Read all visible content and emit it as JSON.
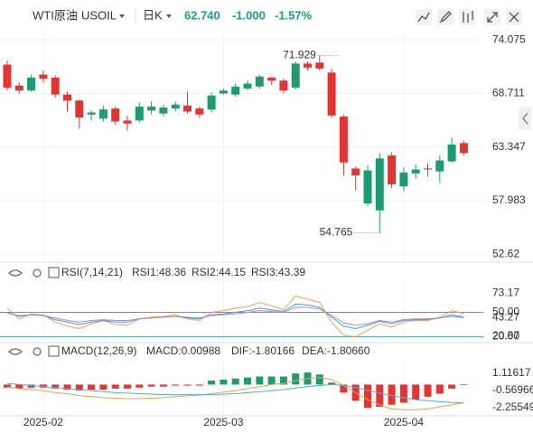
{
  "header": {
    "symbol": "WTI原油",
    "code": "USOIL",
    "period": "日K",
    "price": "62.740",
    "change": "-1.000",
    "change_pct": "-1.57%"
  },
  "chart_data": [
    {
      "type": "candlestick",
      "categories": [
        null,
        null,
        null,
        "2025-02",
        null,
        null,
        null,
        null,
        null,
        null,
        null,
        null,
        null,
        null,
        null,
        null,
        null,
        null,
        "2025-03",
        null,
        null,
        null,
        null,
        null,
        null,
        null,
        null,
        null,
        null,
        null,
        null,
        null,
        null,
        "2025-04",
        null,
        null,
        null,
        null,
        null
      ],
      "open": [
        71.6,
        69.5,
        69.0,
        70.6,
        70.3,
        68.6,
        68.0,
        66.6,
        66.2,
        67.2,
        66.0,
        66.0,
        67.0,
        66.7,
        67.2,
        67.5,
        67.2,
        67.1,
        68.7,
        68.6,
        69.2,
        69.4,
        70.3,
        70.0,
        69.3,
        71.7,
        71.8,
        70.8,
        66.4,
        61.2,
        57.7,
        57.0,
        62.5,
        59.4,
        60.7,
        61.2,
        60.9,
        61.9,
        63.74
      ],
      "high": [
        72.0,
        69.8,
        70.6,
        71.0,
        70.5,
        68.9,
        68.1,
        67.0,
        67.5,
        67.4,
        66.5,
        67.8,
        67.9,
        67.6,
        67.9,
        68.9,
        67.4,
        68.8,
        69.2,
        69.7,
        70.0,
        70.6,
        70.4,
        70.2,
        71.929,
        71.9,
        72.5,
        71.2,
        66.6,
        61.4,
        61.5,
        62.7,
        62.8,
        61.3,
        61.6,
        61.7,
        62.5,
        64.3,
        64.0
      ],
      "low": [
        69.0,
        68.7,
        68.9,
        69.8,
        68.3,
        66.9,
        65.2,
        66.0,
        65.9,
        65.6,
        65.0,
        65.8,
        66.6,
        66.4,
        66.9,
        66.7,
        66.3,
        66.8,
        68.6,
        68.4,
        69.0,
        69.2,
        69.6,
        68.7,
        69.1,
        71.0,
        71.0,
        66.3,
        60.5,
        59.0,
        57.4,
        54.765,
        59.2,
        58.9,
        60.2,
        60.4,
        59.8,
        61.8,
        62.5
      ],
      "close": [
        69.3,
        69.0,
        70.3,
        70.2,
        68.6,
        68.0,
        66.3,
        66.8,
        67.1,
        65.9,
        65.7,
        67.4,
        67.4,
        67.3,
        67.6,
        66.9,
        66.6,
        68.5,
        69.0,
        69.4,
        69.7,
        70.4,
        70.0,
        69.0,
        71.7,
        71.3,
        71.2,
        66.5,
        61.8,
        60.5,
        61.0,
        62.2,
        59.6,
        60.8,
        61.1,
        61.1,
        62.0,
        63.6,
        62.74
      ],
      "up_color": "#1c9c70",
      "down_color": "#e8322f",
      "ylim": [
        52.0,
        74.9
      ],
      "yticks": [
        74.075,
        68.711,
        63.347,
        57.983,
        52.62
      ],
      "high_label": "71.929",
      "low_label": "54.765"
    },
    {
      "type": "line",
      "title": "RSI(7,14,21)",
      "series": [
        {
          "name": "RSI1:48.36",
          "color": "#f3a03f",
          "values": [
            55,
            42,
            48,
            47,
            38,
            33,
            30,
            36,
            40,
            35,
            34,
            42,
            44,
            45,
            47,
            42,
            40,
            50,
            52,
            55,
            57,
            62,
            58,
            53,
            70,
            66,
            62,
            38,
            22,
            20,
            28,
            36,
            32,
            38,
            40,
            40,
            44,
            52,
            48.36
          ]
        },
        {
          "name": "RSI2:44.15",
          "color": "#3f9fdc",
          "values": [
            50,
            45,
            47,
            46,
            41,
            38,
            35,
            38,
            40,
            38,
            38,
            42,
            43,
            44,
            45,
            43,
            42,
            47,
            48,
            50,
            52,
            55,
            53,
            51,
            60,
            59,
            56,
            44,
            33,
            30,
            34,
            39,
            36,
            40,
            41,
            41,
            43,
            47,
            44.15
          ]
        },
        {
          "name": "RSI3:43.39",
          "color": "#a68ade",
          "values": [
            49,
            46,
            47,
            46,
            43,
            40,
            38,
            40,
            41,
            40,
            40,
            42,
            43,
            44,
            45,
            44,
            43,
            46,
            47,
            48,
            50,
            52,
            51,
            50,
            56,
            56,
            54,
            46,
            37,
            34,
            36,
            40,
            38,
            41,
            42,
            42,
            43,
            45,
            43.39
          ]
        }
      ],
      "ylim": [
        14,
        87
      ],
      "yticks": [
        73.17,
        {
          "value": 50,
          "label": "50.00"
        },
        43.27,
        20.87,
        {
          "value": 20,
          "label": "20.00"
        }
      ],
      "hlines": [
        50,
        20
      ],
      "hline_color": "#3fa7c9"
    },
    {
      "type": "macd",
      "title": "MACD(12,26,9)",
      "series": [
        {
          "name": "MACD:0.00988",
          "color": "#a68ade",
          "up_color": "#1c9c70",
          "down_color": "#e8322f",
          "values": [
            -0.3,
            -0.4,
            -0.3,
            -0.3,
            -0.4,
            -0.5,
            -0.6,
            -0.5,
            -0.5,
            -0.4,
            -0.4,
            -0.3,
            -0.2,
            -0.2,
            -0.1,
            -0.1,
            -0.1,
            0.4,
            0.5,
            0.6,
            0.7,
            0.8,
            0.8,
            0.8,
            1.1,
            1.2,
            1.0,
            0.2,
            -0.8,
            -1.6,
            -2.3,
            -2.2,
            -2.0,
            -1.8,
            -1.5,
            -1.2,
            -0.9,
            -0.4,
            0.00988
          ]
        },
        {
          "name": "DIF:-1.80166",
          "color": "#f0a04b",
          "values": [
            -0.2,
            -0.4,
            -0.5,
            -0.6,
            -0.8,
            -0.9,
            -1.1,
            -1.2,
            -1.3,
            -1.35,
            -1.4,
            -1.4,
            -1.35,
            -1.3,
            -1.2,
            -1.1,
            -1.05,
            -0.9,
            -0.75,
            -0.6,
            -0.4,
            -0.2,
            0.0,
            0.1,
            0.4,
            0.6,
            0.7,
            0.5,
            -0.1,
            -0.8,
            -1.5,
            -2.0,
            -2.4,
            -2.5,
            -2.5,
            -2.4,
            -2.2,
            -2.0,
            -1.80166
          ]
        },
        {
          "name": "DEA:-1.80660",
          "color": "#4cb0d6",
          "values": [
            0.1,
            0.0,
            -0.1,
            -0.2,
            -0.3,
            -0.4,
            -0.5,
            -0.6,
            -0.7,
            -0.8,
            -0.85,
            -0.9,
            -0.95,
            -1.0,
            -1.0,
            -1.0,
            -1.0,
            -1.0,
            -0.95,
            -0.9,
            -0.8,
            -0.7,
            -0.6,
            -0.5,
            -0.35,
            -0.2,
            -0.1,
            0.0,
            -0.1,
            -0.3,
            -0.55,
            -0.85,
            -1.1,
            -1.3,
            -1.5,
            -1.6,
            -1.7,
            -1.78,
            -1.8066
          ]
        }
      ],
      "ylim": [
        -3.1,
        2.46
      ],
      "yticks": [
        1.11617,
        -0.56966,
        -2.25549
      ]
    }
  ]
}
